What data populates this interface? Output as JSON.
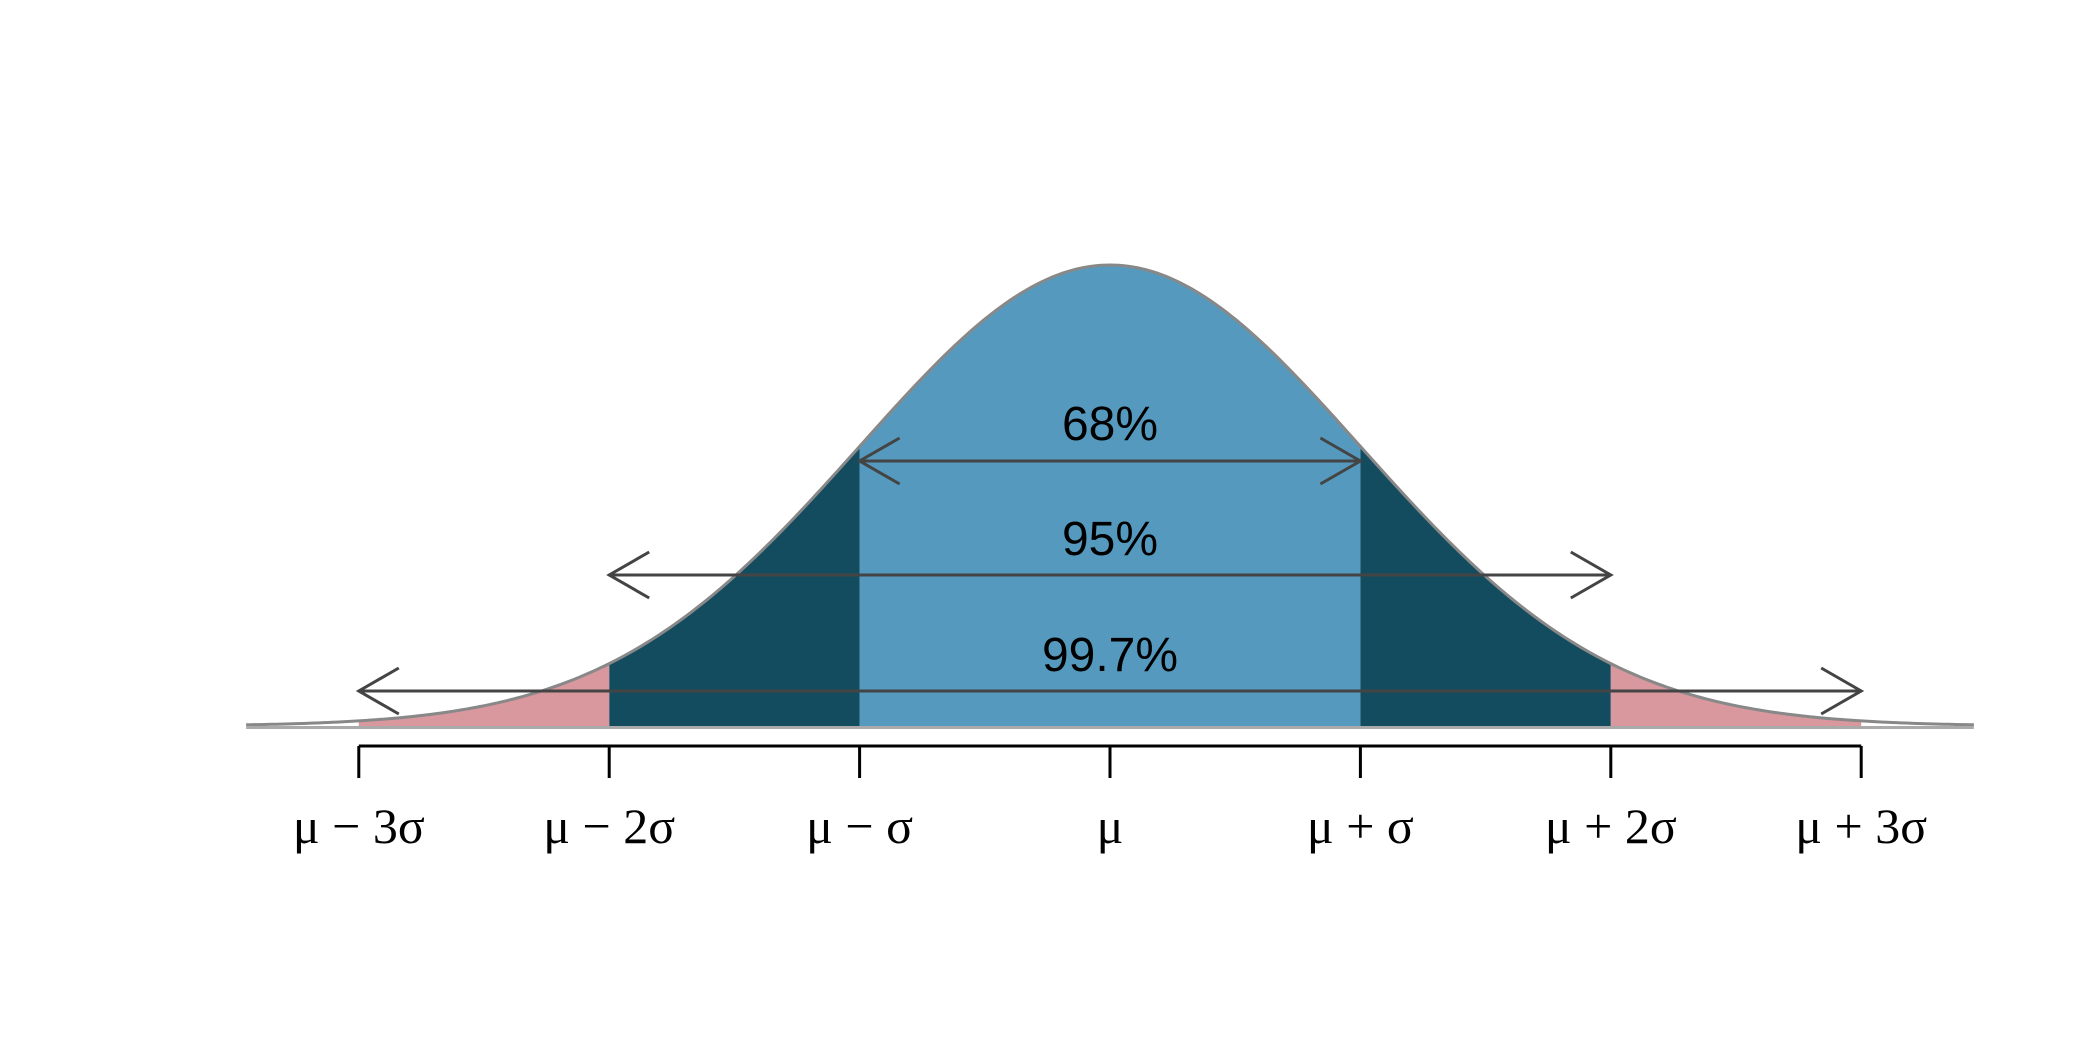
{
  "chart_data": {
    "type": "area",
    "title": "",
    "description": "Normal distribution 68-95-99.7 empirical rule",
    "xlabel": "",
    "ylabel": "",
    "grid": false,
    "tick_labels": [
      "μ − 3σ",
      "μ − 2σ",
      "μ − σ",
      "μ",
      "μ + σ",
      "μ + 2σ",
      "μ + 3σ"
    ],
    "tick_positions_sd": [
      -3,
      -2,
      -1,
      0,
      1,
      2,
      3
    ],
    "regions": [
      {
        "name": "within-1-sd",
        "from_sd": -1,
        "to_sd": 1,
        "color": "#559ABE"
      },
      {
        "name": "between-1-and-2-sd",
        "from_sd": -2,
        "to_sd": -1,
        "color": "#134B5F"
      },
      {
        "name": "between-1-and-2-sd",
        "from_sd": 1,
        "to_sd": 2,
        "color": "#134B5F"
      },
      {
        "name": "between-2-and-3-sd",
        "from_sd": -3,
        "to_sd": -2,
        "color": "#D9979E"
      },
      {
        "name": "between-2-and-3-sd",
        "from_sd": 2,
        "to_sd": 3,
        "color": "#D9979E"
      }
    ],
    "annotations": [
      {
        "label": "68%",
        "from_sd": -1,
        "to_sd": 1
      },
      {
        "label": "95%",
        "from_sd": -2,
        "to_sd": 2
      },
      {
        "label": "99.7%",
        "from_sd": -3,
        "to_sd": 3
      }
    ],
    "x_range_sd": [
      -3.45,
      3.45
    ],
    "curve_color": "#888888",
    "arrow_color": "#444444"
  }
}
